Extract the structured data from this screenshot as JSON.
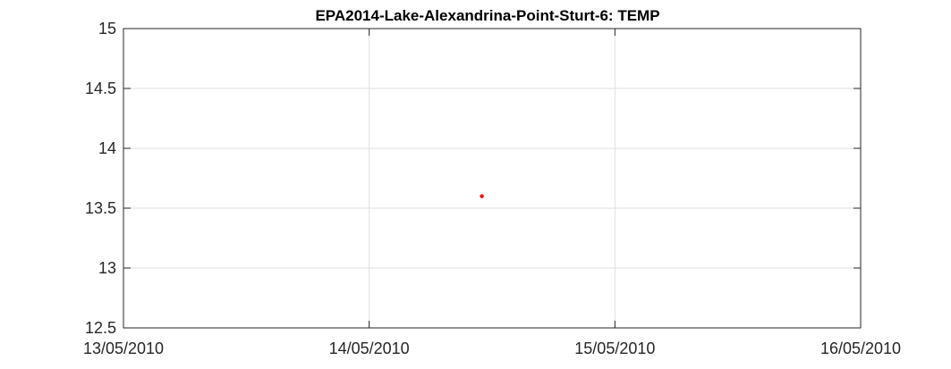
{
  "chart_data": {
    "type": "scatter",
    "title": "EPA2014-Lake-Alexandrina-Point-Sturt-6: TEMP",
    "xlabel": "",
    "ylabel": "",
    "x_ticks": [
      "13/05/2010",
      "14/05/2010",
      "15/05/2010",
      "16/05/2010"
    ],
    "y_ticks": [
      "15",
      "14.5",
      "14",
      "13.5",
      "13",
      "12.5"
    ],
    "x_range": [
      "13/05/2010",
      "16/05/2010"
    ],
    "ylim": [
      12.5,
      15
    ],
    "grid": true,
    "series": [
      {
        "color": "#ff0000",
        "points": [
          {
            "x": "14/05/2010 11:00",
            "y": 13.6
          }
        ]
      }
    ]
  }
}
